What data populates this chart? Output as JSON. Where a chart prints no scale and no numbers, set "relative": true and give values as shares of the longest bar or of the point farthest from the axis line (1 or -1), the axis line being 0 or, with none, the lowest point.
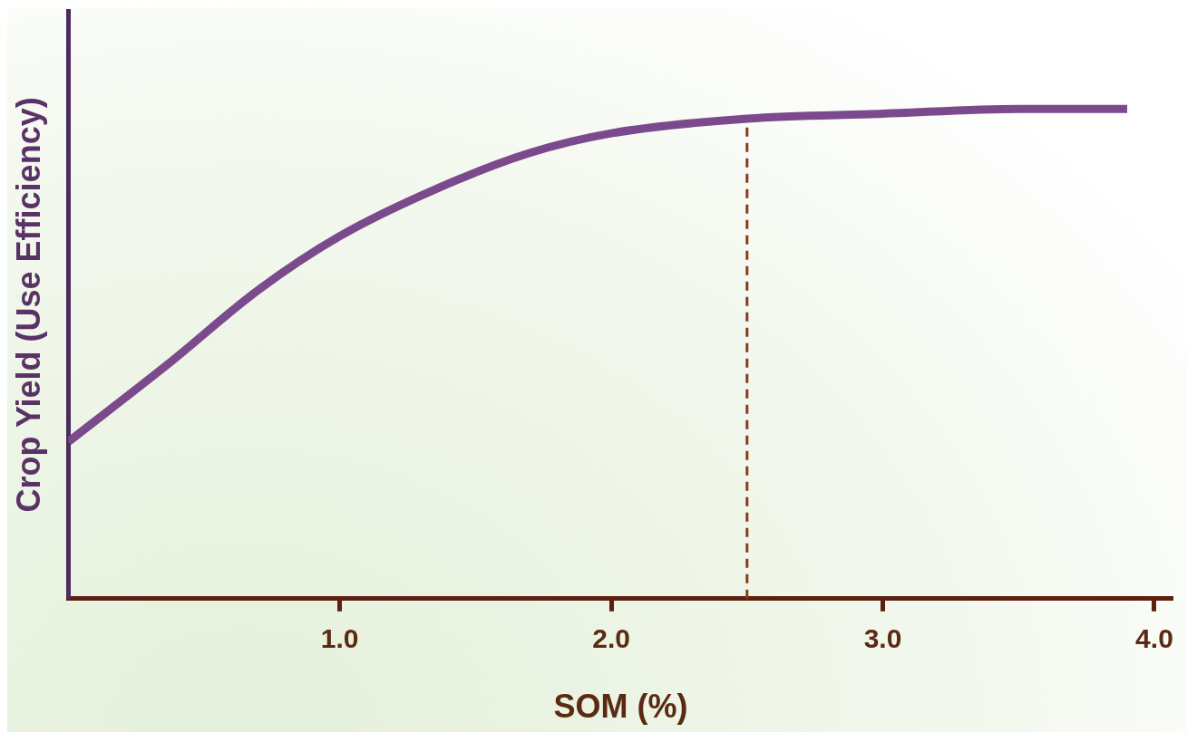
{
  "chart_data": {
    "type": "line",
    "xlabel": "SOM (%)",
    "ylabel": "Crop Yield (Use Efficiency)",
    "relative": true,
    "xlim": [
      0,
      4.07
    ],
    "xticks": [
      {
        "value": 1,
        "label": "1.0"
      },
      {
        "value": 2,
        "label": "2.0"
      },
      {
        "value": 3,
        "label": "3.0"
      },
      {
        "value": 4,
        "label": "4.0"
      }
    ],
    "tick_labels": "x",
    "grid": false,
    "legend": false,
    "marker": "none",
    "line_style": "solid",
    "series": [
      {
        "color": "#7b4a8c",
        "x": [
          0,
          0.37,
          0.7,
          1.0,
          1.37,
          1.7,
          2.0,
          2.5,
          3.0,
          3.5,
          3.9
        ],
        "values": [
          0.32,
          0.48,
          0.63,
          0.74,
          0.84,
          0.91,
          0.95,
          0.98,
          0.99,
          1.0,
          1.0
        ]
      }
    ],
    "ref_lines": [
      {
        "axis": "x",
        "value": 2.5,
        "color": "#8b3a1a",
        "line_style": "dashed"
      }
    ]
  }
}
